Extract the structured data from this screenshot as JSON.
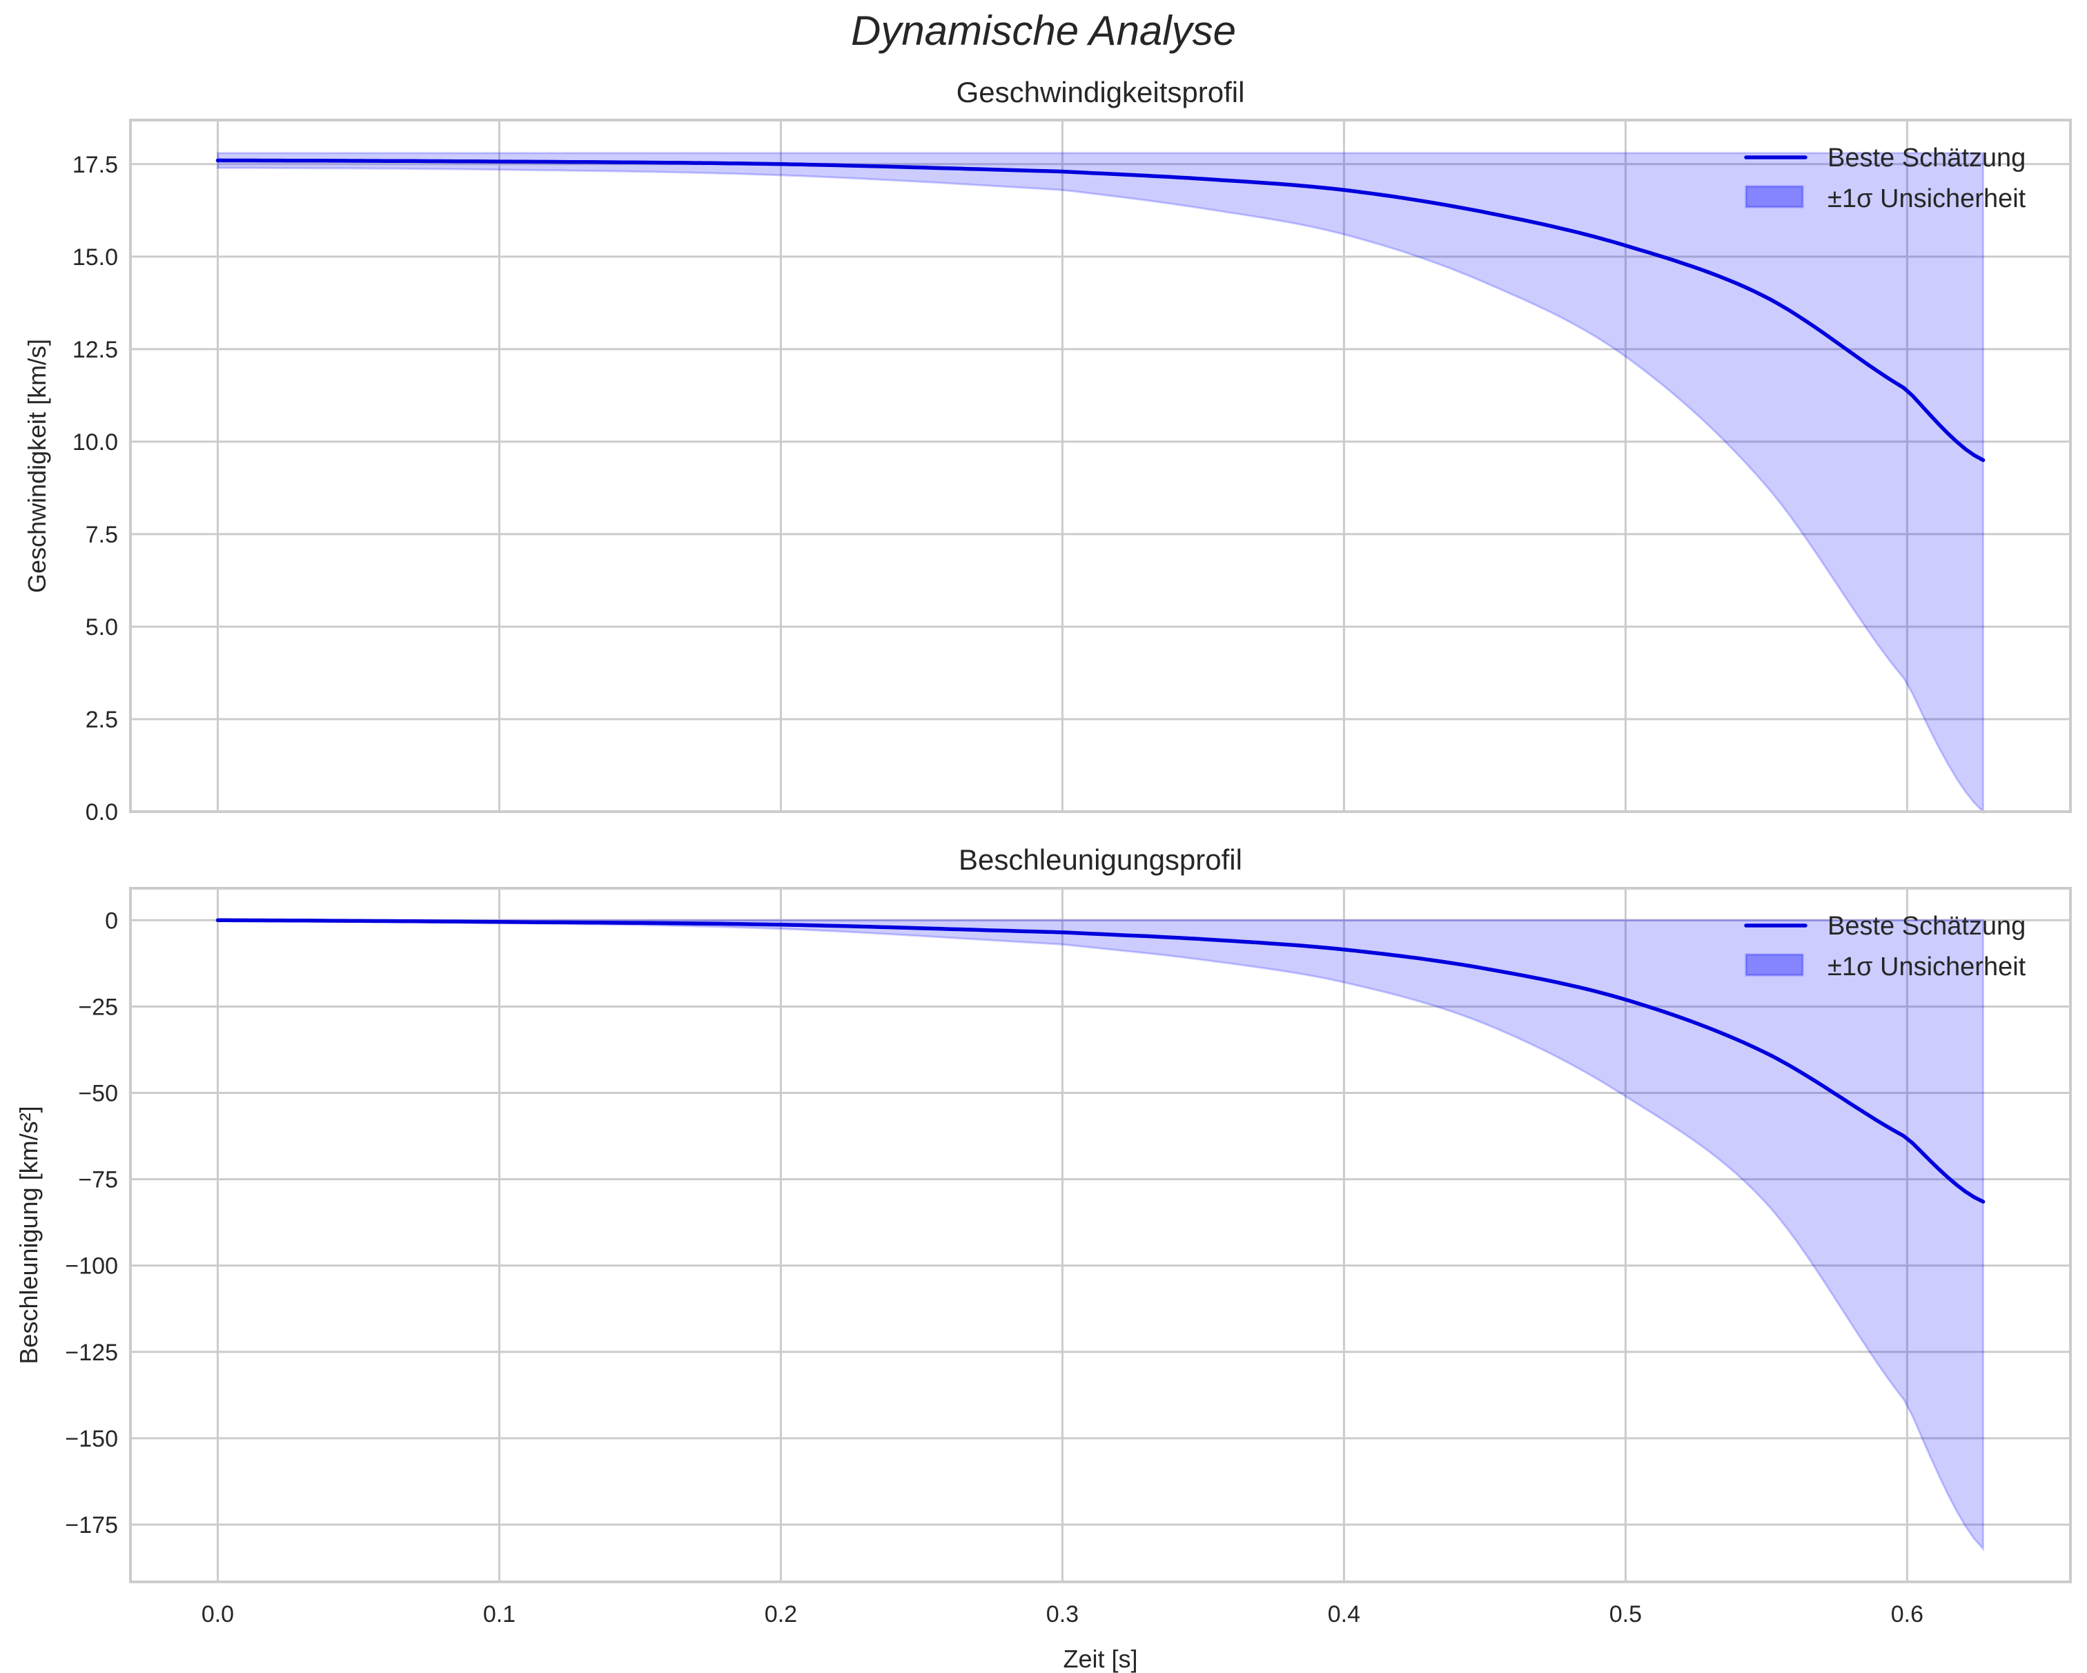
{
  "figure": {
    "title": "Dynamische Analyse"
  },
  "chart_data": [
    {
      "type": "line",
      "title": "Geschwindigkeitsprofil",
      "xlabel": "",
      "ylabel": "Geschwindigkeit [km/s]",
      "xlim": [
        -0.031,
        0.658
      ],
      "ylim": [
        0.0,
        18.69
      ],
      "xticks": [
        "0.0",
        "0.1",
        "0.2",
        "0.3",
        "0.4",
        "0.5",
        "0.6"
      ],
      "yticks": [
        "0.0",
        "2.5",
        "5.0",
        "7.5",
        "10.0",
        "12.5",
        "15.0",
        "17.5"
      ],
      "ytick_values": [
        0,
        2.5,
        5,
        7.5,
        10,
        12.5,
        15,
        17.5
      ],
      "grid": true,
      "legend": {
        "position": "upper right",
        "entries": [
          "Beste Schätzung",
          "±1σ Unsicherheit"
        ]
      },
      "x": [
        0.0,
        0.1,
        0.2,
        0.3,
        0.35,
        0.4,
        0.45,
        0.5,
        0.55,
        0.6,
        0.627
      ],
      "series": [
        {
          "name": "Beste Schätzung",
          "kind": "line",
          "color": "#0000dd",
          "values": [
            17.6,
            17.57,
            17.5,
            17.3,
            17.1,
            16.8,
            16.2,
            15.3,
            13.9,
            11.4,
            9.5
          ]
        },
        {
          "name": "±1σ Unsicherheit",
          "kind": "band",
          "color": "#6666ff",
          "upper": [
            17.8,
            17.8,
            17.8,
            17.8,
            17.8,
            17.8,
            17.8,
            17.8,
            17.8,
            17.8,
            17.8
          ],
          "lower": [
            17.4,
            17.35,
            17.2,
            16.8,
            16.3,
            15.6,
            14.3,
            12.3,
            8.8,
            3.5,
            0.0
          ]
        }
      ]
    },
    {
      "type": "line",
      "title": "Beschleunigungsprofil",
      "xlabel": "Zeit [s]",
      "ylabel": "Beschleunigung [km/s²]",
      "xlim": [
        -0.031,
        0.658
      ],
      "ylim": [
        -191.6,
        9.25
      ],
      "xticks": [
        "0.0",
        "0.1",
        "0.2",
        "0.3",
        "0.4",
        "0.5",
        "0.6"
      ],
      "yticks": [
        "0",
        "−25",
        "−50",
        "−75",
        "−100",
        "−125",
        "−150",
        "−175"
      ],
      "ytick_values": [
        0,
        -25,
        -50,
        -75,
        -100,
        -125,
        -150,
        -175
      ],
      "grid": true,
      "legend": {
        "position": "upper right",
        "entries": [
          "Beste Schätzung",
          "±1σ Unsicherheit"
        ]
      },
      "x": [
        0.0,
        0.1,
        0.2,
        0.3,
        0.35,
        0.4,
        0.45,
        0.5,
        0.55,
        0.6,
        0.627
      ],
      "series": [
        {
          "name": "Beste Schätzung",
          "kind": "line",
          "color": "#0000dd",
          "values": [
            0.0,
            -0.5,
            -1.3,
            -3.5,
            -5.5,
            -8.5,
            -14,
            -23,
            -38.5,
            -63,
            -81.5
          ]
        },
        {
          "name": "±1σ Unsicherheit",
          "kind": "band",
          "color": "#6666ff",
          "upper": [
            0,
            0,
            0,
            0,
            0,
            0,
            0,
            0,
            0,
            0,
            0
          ],
          "lower": [
            -0.3,
            -0.8,
            -2.5,
            -7,
            -11.5,
            -18,
            -30,
            -51,
            -82,
            -140,
            -182
          ]
        }
      ]
    }
  ]
}
